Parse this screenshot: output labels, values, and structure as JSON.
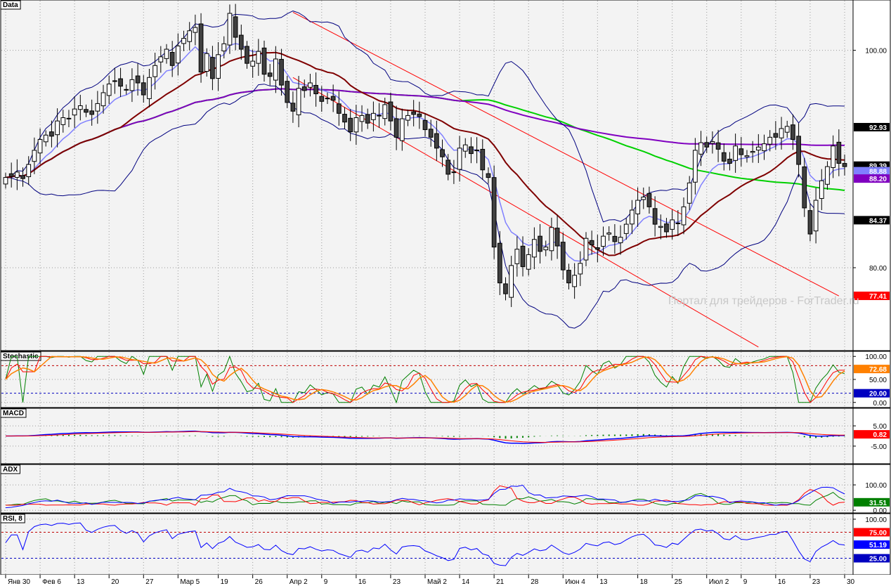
{
  "watermark": "Портал для трейдеров - ForTrader.ru",
  "colors": {
    "background": "#f3f3f3",
    "bull_candle": "#ffffff",
    "bear_candle": "#404040",
    "bollinger": "#00007f",
    "ma_fast": "#8080ff",
    "ma_mid": "#7f0000",
    "ma_slow_green": "#00d000",
    "ma_slow_purple": "#8000c0",
    "channel": "#ff0000",
    "stoch_k": "#008000",
    "stoch_d1": "#ff0000",
    "stoch_d2": "#ff8000",
    "macd_line": "#0000ff",
    "macd_signal": "#ff0000",
    "macd_hist": "#008000",
    "adx": "#0000ff",
    "di_plus": "#008000",
    "di_minus": "#ff0000",
    "rsi": "#0000ff"
  },
  "chart_data": [
    {
      "type": "candlestick",
      "title": "Data",
      "x_labels": [
        "Янв 30",
        "Фев 6",
        "13",
        "20",
        "27",
        "Мар 5",
        "19",
        "26",
        "Апр 2",
        "9",
        "16",
        "23",
        "Май 2",
        "14",
        "21",
        "28",
        "Июн 4",
        "13",
        "18",
        "25",
        "Июл 2",
        "9",
        "16",
        "23",
        "30"
      ],
      "ylim": [
        72.5,
        104.5
      ],
      "yticks": [
        80,
        100
      ],
      "overlays": [
        "Bollinger Bands",
        "Moving averages",
        "Trend channel"
      ],
      "price_badges": [
        {
          "text": "92.93",
          "value": 92.93,
          "color": "#000000"
        },
        {
          "text": "89.39",
          "value": 89.39,
          "color": "#000000"
        },
        {
          "text": "88.88",
          "value": 88.88,
          "color": "#8080ff"
        },
        {
          "text": "88.20",
          "value": 88.2,
          "color": "#8000c0"
        },
        {
          "text": "84.37",
          "value": 84.37,
          "color": "#000000"
        },
        {
          "text": "77.41",
          "value": 77.41,
          "color": "#ff0000"
        }
      ],
      "closes": [
        88.3,
        88.4,
        88.8,
        88.2,
        89.5,
        90.8,
        91.8,
        92.2,
        92.1,
        93.5,
        93.8,
        93.7,
        94.6,
        94.9,
        94.3,
        94.1,
        95.1,
        96.1,
        96.9,
        97.2,
        96.7,
        96.4,
        97.3,
        97.0,
        95.9,
        97.5,
        98.6,
        99.4,
        100.1,
        98.6,
        100.4,
        101.1,
        101.8,
        102.1,
        98.0,
        99.7,
        97.4,
        99.6,
        100.6,
        103.4,
        101.2,
        100.1,
        98.8,
        99.0,
        99.9,
        97.8,
        97.6,
        99.2,
        96.8,
        95.2,
        94.4,
        96.5,
        96.3,
        97.0,
        96.0,
        95.3,
        95.6,
        95.4,
        94.2,
        93.4,
        92.5,
        93.8,
        94.0,
        93.3,
        94.2,
        94.0,
        95.0,
        93.5,
        92.0,
        93.7,
        94.0,
        94.1,
        93.9,
        92.7,
        92.0,
        91.0,
        90.2,
        88.6,
        88.8,
        91.0,
        91.3,
        90.5,
        90.8,
        89.0,
        88.3,
        81.9,
        78.6,
        77.6,
        80.2,
        81.7,
        80.1,
        81.2,
        82.6,
        81.5,
        81.9,
        83.7,
        82.0,
        79.8,
        78.6,
        79.3,
        80.4,
        82.7,
        82.1,
        81.7,
        82.9,
        83.2,
        82.4,
        82.8,
        84.0,
        85.3,
        86.2,
        86.5,
        85.6,
        84.0,
        83.8,
        83.3,
        84.4,
        84.1,
        85.6,
        87.8,
        90.8,
        91.5,
        91.1,
        91.6,
        90.9,
        89.8,
        89.6,
        91.2,
        90.4,
        90.3,
        90.7,
        91.1,
        91.4,
        92.0,
        92.0,
        92.8,
        93.0,
        91.8,
        89.5,
        85.5,
        83.1,
        86.2,
        88.0,
        89.3,
        91.2,
        89.6,
        89.3
      ]
    },
    {
      "type": "line",
      "title": "Stochastic",
      "ylim": [
        -8,
        108
      ],
      "yticks": [
        0,
        50,
        100
      ],
      "ytick_labels": [
        "0.00",
        "50.00",
        "100.00"
      ],
      "levels": [
        80,
        20
      ],
      "badges": [
        {
          "text": "72.68",
          "value": 72.68,
          "color": "#ff8000"
        },
        {
          "text": "20.00",
          "value": 20,
          "color": "#0000c0"
        }
      ]
    },
    {
      "type": "line",
      "title": "MACD",
      "ylim": [
        -13,
        13
      ],
      "yticks": [
        5,
        -5
      ],
      "ytick_labels": [
        "5.00",
        "-5.00"
      ],
      "badges": [
        {
          "text": "0.82",
          "value": 0.82,
          "color": "#ff0000"
        }
      ]
    },
    {
      "type": "line",
      "title": "ADX",
      "ylim": [
        -5,
        175
      ],
      "yticks": [
        0,
        100
      ],
      "ytick_labels": [
        "0.00",
        "100.00"
      ],
      "badges": [
        {
          "text": "31.51",
          "value": 31.51,
          "color": "#008000"
        }
      ]
    },
    {
      "type": "line",
      "title": "RSI, 8",
      "ylim": [
        -4,
        108
      ],
      "yticks": [
        100
      ],
      "ytick_labels": [
        "100.00"
      ],
      "levels": [
        75,
        25
      ],
      "badges": [
        {
          "text": "75.00",
          "value": 75,
          "color": "#ff0000"
        },
        {
          "text": "51.19",
          "value": 51.19,
          "color": "#0000ff"
        },
        {
          "text": "25.00",
          "value": 25,
          "color": "#0000c0"
        }
      ]
    }
  ]
}
